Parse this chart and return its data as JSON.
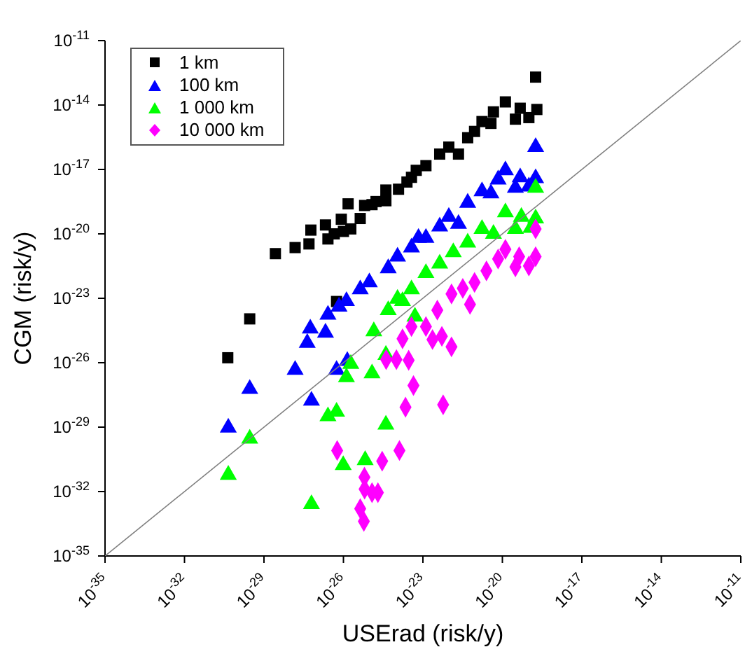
{
  "chart_data": {
    "type": "scatter",
    "xlabel": "USErad (risk/y)",
    "ylabel": "CGM (risk/y)",
    "log": "xy",
    "legend": "top left",
    "xlim": [
      1e-35,
      1e-11
    ],
    "ylim": [
      1e-35,
      1e-11
    ],
    "xticks": [
      {
        "value": 1e-35,
        "label": "10$^{-35}$"
      },
      {
        "value": 1e-32,
        "label": "10$^{-32}$"
      },
      {
        "value": 1e-29,
        "label": "10$^{-29}$"
      },
      {
        "value": 1e-26,
        "label": "10$^{-26}$"
      },
      {
        "value": 1e-23,
        "label": "10$^{-23}$"
      },
      {
        "value": 1e-20,
        "label": "10$^{-20}$"
      },
      {
        "value": 1e-17,
        "label": "10$^{-17}$"
      },
      {
        "value": 1e-14,
        "label": "10$^{-14}$"
      },
      {
        "value": 1e-11,
        "label": "10$^{-11}$"
      }
    ],
    "yticks": [
      {
        "value": 1e-35,
        "label": "10$^{-35}$"
      },
      {
        "value": 1e-32,
        "label": "10$^{-32}$"
      },
      {
        "value": 1e-29,
        "label": "10$^{-29}$"
      },
      {
        "value": 1e-26,
        "label": "10$^{-26}$"
      },
      {
        "value": 1e-23,
        "label": "10$^{-23}$"
      },
      {
        "value": 1e-20,
        "label": "10$^{-20}$"
      },
      {
        "value": 1e-17,
        "label": "10$^{-17}$"
      },
      {
        "value": 1e-14,
        "label": "10$^{-14}$"
      },
      {
        "value": 1e-11,
        "label": "10$^{-11}$"
      }
    ],
    "series": [
      {
        "name": "1 km",
        "color": "#000000",
        "marker": "square",
        "x": [
          4.3e-31,
          2.9e-30,
          5.5e-27,
          2.7e-29,
          1.5e-28,
          5e-28,
          5.9e-28,
          2.1e-27,
          2.6e-27,
          4.5e-27,
          8.3e-27,
          1e-26,
          1.9e-26,
          1.5e-26,
          4.3e-26,
          6.3e-26,
          1.2e-25,
          1.7e-25,
          4e-25,
          4e-25,
          1.2e-24,
          2.5e-24,
          5.6e-24,
          3.7e-24,
          1.3e-23,
          4.3e-23,
          9.5e-23,
          2.2e-22,
          4.9e-22,
          8.9e-22,
          1.7e-21,
          3.7e-21,
          4.6e-21,
          1.3e-20,
          3.1e-20,
          4.7e-20,
          1e-19,
          2e-19,
          1.8e-19
        ],
        "values": [
          1.7e-26,
          1.1e-24,
          7.1e-24,
          1.2e-21,
          2.3e-21,
          3.4e-21,
          1.5e-20,
          2.6e-20,
          5.8e-21,
          1e-20,
          4.8e-20,
          1.3e-20,
          1.7e-20,
          2.5e-19,
          5.2e-20,
          2.1e-19,
          2.3e-19,
          3.2e-19,
          1.1e-18,
          3.5e-19,
          1.2e-18,
          2.6e-18,
          9.1e-18,
          4.3e-18,
          1.5e-17,
          5.2e-17,
          1.1e-16,
          5.2e-17,
          3e-16,
          5.9e-16,
          1.7e-15,
          1.4e-15,
          4.8e-15,
          1.4e-14,
          2.2e-15,
          7.1e-15,
          2.6e-15,
          6.2e-15,
          2e-13
        ]
      },
      {
        "name": "100 km",
        "color": "#0000ff",
        "marker": "triangle",
        "x": [
          4.5e-31,
          2.9e-30,
          1.5e-28,
          6.2e-28,
          4.3e-28,
          5.6e-28,
          2.1e-27,
          2.6e-27,
          5.5e-27,
          6.8e-27,
          1.4e-26,
          4.3e-26,
          1.3e-26,
          9.5e-26,
          4.9e-25,
          3.7e-24,
          6.8e-24,
          1.1e-24,
          1.3e-23,
          4.3e-23,
          9.5e-23,
          2.2e-22,
          4.9e-22,
          1.7e-21,
          3.7e-21,
          6.9e-21,
          1.3e-20,
          3.1e-20,
          4.7e-20,
          1e-19,
          1.8e-19,
          1.8e-19
        ],
        "values": [
          9.5e-30,
          6e-28,
          4.6e-27,
          1.7e-28,
          8.3e-26,
          3.9e-25,
          2.5e-25,
          1.7e-24,
          4.6e-27,
          4.1e-24,
          1.2e-26,
          2.6e-23,
          7.4e-24,
          5.5e-23,
          2.5e-22,
          2.3e-21,
          6.5e-21,
          8.7e-22,
          6.5e-21,
          2.2e-20,
          6.2e-20,
          2.9e-20,
          2.8e-19,
          9.5e-19,
          7.6e-19,
          3.4e-18,
          9.1e-18,
          1.4e-18,
          4.3e-18,
          1.6e-18,
          3.9e-18,
          1.1e-16
        ]
      },
      {
        "name": "1 000 km",
        "color": "#00ff00",
        "marker": "triangle",
        "x": [
          4.5e-31,
          2.9e-30,
          6.2e-28,
          2.6e-27,
          5.5e-27,
          9.8e-27,
          1.3e-26,
          1.9e-26,
          6.6e-26,
          1.2e-25,
          4e-25,
          4e-25,
          1.4e-25,
          4.9e-25,
          1.7e-24,
          5e-24,
          3.7e-24,
          1.1e-24,
          1.3e-23,
          4.3e-23,
          1.4e-22,
          4.9e-22,
          1.7e-21,
          4.6e-21,
          1.3e-20,
          3.1e-20,
          5.2e-20,
          1.2e-19,
          1.8e-19,
          1.8e-19
        ],
        "values": [
          6e-32,
          2.9e-30,
          2.6e-33,
          3.2e-29,
          5.2e-29,
          1.7e-31,
          2.1e-27,
          8.7e-27,
          2.9e-31,
          3.2e-27,
          1.3e-29,
          2.3e-26,
          2.9e-25,
          2.8e-24,
          7.4e-24,
          1.4e-24,
          2.6e-23,
          9.5e-24,
          1.5e-22,
          4.1e-22,
          1.4e-21,
          3.9e-21,
          1.7e-20,
          1e-20,
          1e-19,
          1.7e-20,
          6.2e-20,
          1.9e-20,
          5.2e-20,
          1.4e-18
        ]
      },
      {
        "name": "10 000 km",
        "color": "#ff00ff",
        "marker": "diamond",
        "x": [
          5.8e-27,
          6.2e-26,
          6.3e-26,
          1.2e-25,
          2e-25,
          4.3e-26,
          5.9e-26,
          2.9e-25,
          4.1e-25,
          1e-24,
          2.9e-24,
          1.3e-24,
          2.2e-24,
          4.4e-24,
          1.7e-24,
          3.7e-24,
          1.3e-23,
          3.5e-23,
          1.2e-22,
          3.2e-22,
          8.9e-22,
          1.2e-22,
          5.2e-23,
          2.3e-23,
          6e-22,
          5.8e-23,
          2.5e-21,
          6.9e-21,
          1.3e-20,
          3.1e-20,
          4.3e-20,
          1e-19,
          1.8e-19,
          1.8e-19
        ],
        "values": [
          8.1e-31,
          4.7e-32,
          1.3e-32,
          8.9e-33,
          8.9e-33,
          1.6e-33,
          4.1e-34,
          2.6e-31,
          1.4e-26,
          1.4e-26,
          1.3e-26,
          8.1e-31,
          8.5e-29,
          8.7e-28,
          1.3e-25,
          4.8e-25,
          4.8e-25,
          2.8e-24,
          1.6e-23,
          2.9e-23,
          5.5e-23,
          5.5e-26,
          1.7e-25,
          1.2e-25,
          5.2e-24,
          1.1e-28,
          1.9e-22,
          6.8e-22,
          1.9e-21,
          2.9e-22,
          8.7e-22,
          3.2e-22,
          8.7e-22,
          1.7e-20
        ]
      },
      {
        "type": "line",
        "color": "#808080",
        "marker": "none",
        "line_style": "solid",
        "x": [
          1e-35,
          1e-11
        ],
        "values": [
          1e-35,
          1e-11
        ]
      }
    ]
  }
}
